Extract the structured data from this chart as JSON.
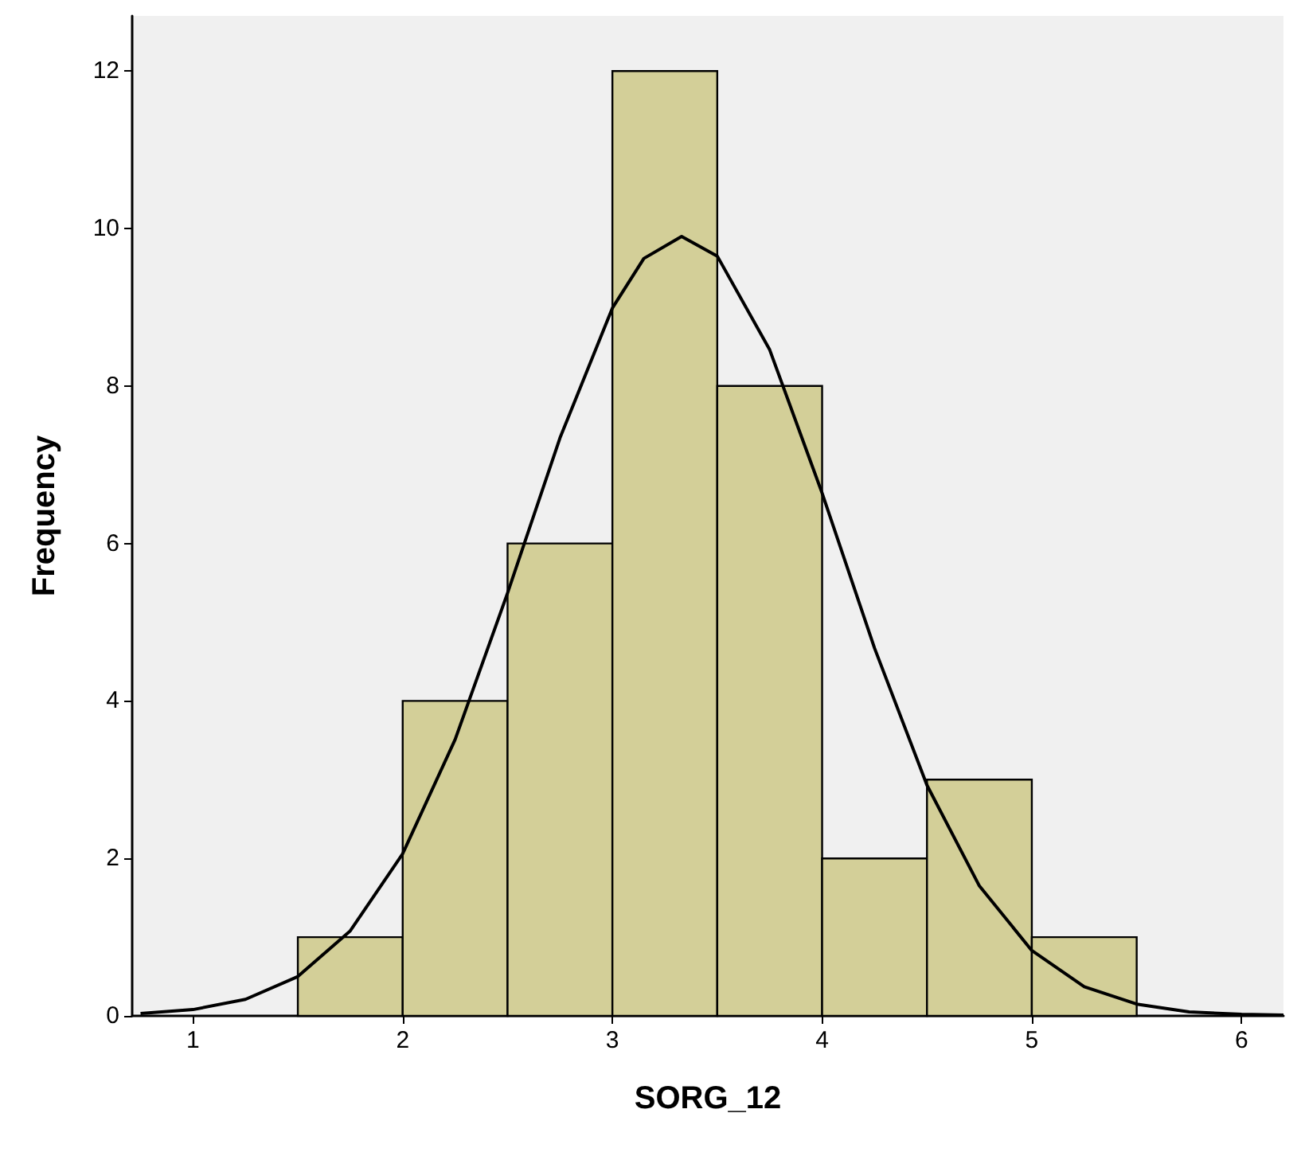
{
  "chart_data": {
    "type": "histogram",
    "xlabel": "SORG_12",
    "ylabel": "Frequency",
    "xlim": [
      0.71,
      6.2
    ],
    "ylim": [
      0,
      12.7
    ],
    "xticks": [
      1,
      2,
      3,
      4,
      5,
      6
    ],
    "yticks": [
      0,
      2,
      4,
      6,
      8,
      10,
      12
    ],
    "marker": "none",
    "series": [
      {
        "color": "#d3cf98",
        "bins": [
          1.5,
          2,
          2.5,
          3,
          3.5,
          4,
          4.5,
          5,
          5.5
        ],
        "values": [
          1,
          4,
          6,
          12,
          8,
          2,
          3,
          1
        ]
      },
      {
        "type": "line",
        "color": "#000000",
        "x": [
          0.75,
          1,
          1.25,
          1.5,
          1.75,
          2,
          2.25,
          2.5,
          2.75,
          3,
          3.15,
          3.33,
          3.5,
          3.75,
          4,
          4.25,
          4.5,
          4.75,
          5,
          5.25,
          5.5,
          5.75,
          6,
          6.2
        ],
        "values": [
          0.03,
          0.08,
          0.21,
          0.5,
          1.08,
          2.06,
          3.51,
          5.37,
          7.34,
          8.99,
          9.62,
          9.9,
          9.65,
          8.46,
          6.64,
          4.67,
          2.93,
          1.65,
          0.83,
          0.37,
          0.15,
          0.05,
          0.02,
          0.01
        ]
      }
    ]
  }
}
